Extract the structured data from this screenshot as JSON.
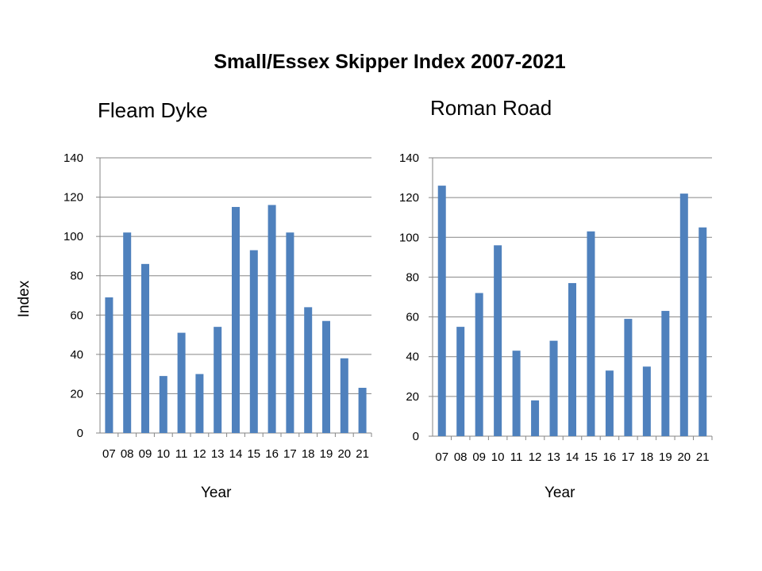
{
  "title": "Small/Essex Skipper Index 2007-2021",
  "colors": {
    "bar": "#4f81bd",
    "grid": "#868686",
    "axis": "#868686"
  },
  "chart_data": [
    {
      "type": "bar",
      "title": "Fleam Dyke",
      "xlabel": "Year",
      "ylabel": "Index",
      "ylim": [
        0,
        140
      ],
      "yticks": [
        "0",
        "20",
        "40",
        "60",
        "80",
        "100",
        "120",
        "140"
      ],
      "grid": true,
      "categories": [
        "07",
        "08",
        "09",
        "10",
        "11",
        "12",
        "13",
        "14",
        "15",
        "16",
        "17",
        "18",
        "19",
        "20",
        "21"
      ],
      "values": [
        69,
        102,
        86,
        29,
        51,
        30,
        54,
        115,
        93,
        116,
        102,
        64,
        57,
        38,
        23
      ]
    },
    {
      "type": "bar",
      "title": "Roman Road",
      "xlabel": "Year",
      "ylabel": "",
      "ylim": [
        0,
        140
      ],
      "yticks": [
        "0",
        "20",
        "40",
        "60",
        "80",
        "100",
        "120",
        "140"
      ],
      "grid": true,
      "categories": [
        "07",
        "08",
        "09",
        "10",
        "11",
        "12",
        "13",
        "14",
        "15",
        "16",
        "17",
        "18",
        "19",
        "20",
        "21"
      ],
      "values": [
        126,
        55,
        72,
        96,
        43,
        18,
        48,
        77,
        103,
        33,
        59,
        35,
        63,
        122,
        105
      ]
    }
  ]
}
